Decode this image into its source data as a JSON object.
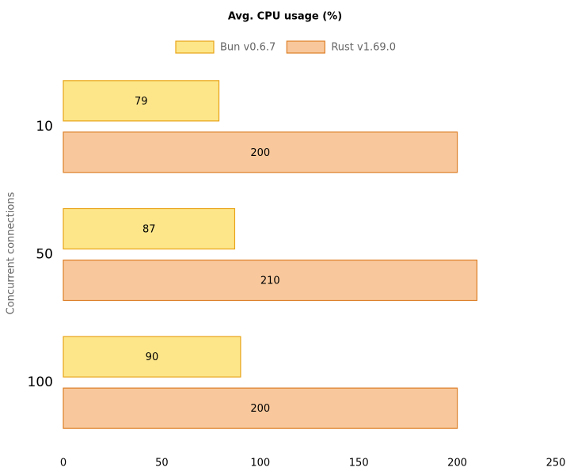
{
  "chart_data": {
    "type": "bar",
    "orientation": "horizontal",
    "title": "Avg. CPU usage (%)",
    "y_label": "Concurrent connections",
    "categories": [
      "10",
      "50",
      "100"
    ],
    "series": [
      {
        "name": "Bun v0.6.7",
        "color": "#fde68a",
        "border": "#e8a317",
        "values": [
          79,
          87,
          90
        ]
      },
      {
        "name": "Rust v1.69.0",
        "color": "#f8c89c",
        "border": "#dd7e26",
        "values": [
          200,
          210,
          200
        ]
      }
    ],
    "xlim": [
      0,
      250
    ],
    "xticks": [
      0,
      50,
      100,
      150,
      200,
      250
    ],
    "grid": false
  }
}
